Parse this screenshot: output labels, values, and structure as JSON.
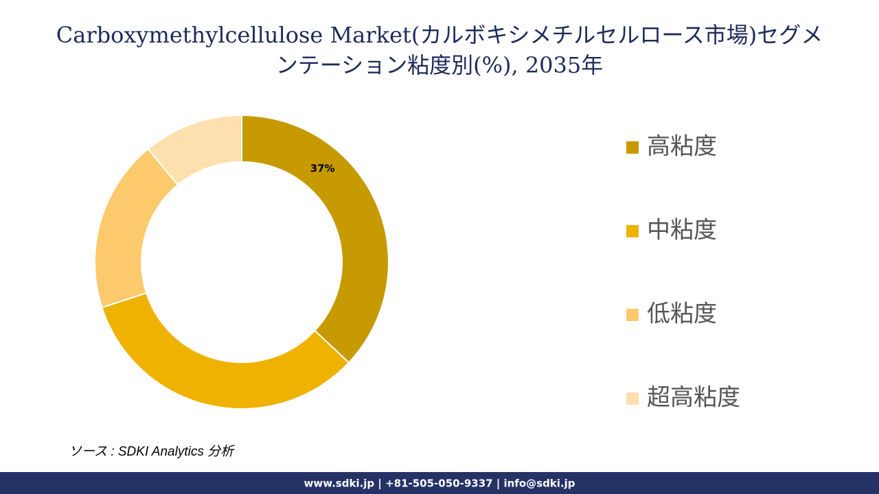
{
  "chart_data": {
    "type": "donut",
    "title": "Carboxymethylcellulose Market(カルボキシメチルセルロース市場)セグメンテーション粘度別(%), 2035年",
    "categories": [
      "高粘度",
      "中粘度",
      "低粘度",
      "超高粘度"
    ],
    "values": [
      37,
      33,
      19,
      11
    ],
    "value_labels": [
      "37%",
      null,
      null,
      null
    ],
    "colors": [
      "#c69a00",
      "#efb200",
      "#fcca6c",
      "#fde0ae"
    ],
    "legend": "right"
  },
  "source": "ソース : SDKI Analytics 分析",
  "footer": "www.sdki.jp | +81-505-050-9337 | info@sdki.jp"
}
